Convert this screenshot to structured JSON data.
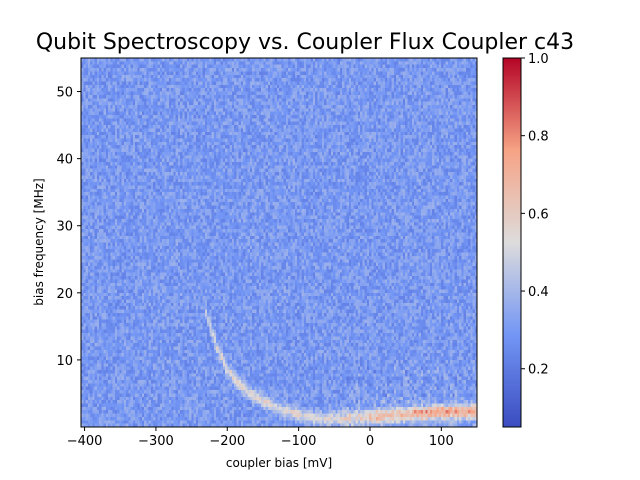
{
  "chart_data": {
    "type": "heatmap",
    "title": "Qubit Spectroscopy vs. Coupler Flux  Coupler c43",
    "xlabel": "coupler bias [mV]",
    "ylabel": "bias frequency [MHz]",
    "xlim": [
      -405,
      150
    ],
    "ylim": [
      0,
      55
    ],
    "xticks": [
      {
        "value": -400,
        "label": "−400"
      },
      {
        "value": -300,
        "label": "−300"
      },
      {
        "value": -200,
        "label": "−200"
      },
      {
        "value": -100,
        "label": "−100"
      },
      {
        "value": 0,
        "label": "0"
      },
      {
        "value": 100,
        "label": "100"
      }
    ],
    "yticks": [
      {
        "value": 10,
        "label": "10"
      },
      {
        "value": 20,
        "label": "20"
      },
      {
        "value": 30,
        "label": "30"
      },
      {
        "value": 40,
        "label": "40"
      },
      {
        "value": 50,
        "label": "50"
      }
    ],
    "colormap": "coolwarm",
    "colorbar": {
      "min": 0.05,
      "max": 1.0,
      "ticks": [
        {
          "value": 0.2,
          "label": "0.2"
        },
        {
          "value": 0.4,
          "label": "0.4"
        },
        {
          "value": 0.6,
          "label": "0.6"
        },
        {
          "value": 0.8,
          "label": "0.8"
        },
        {
          "value": 1.0,
          "label": "1.0"
        }
      ]
    },
    "background_level": 0.3,
    "feature_trace": [
      {
        "x": -230,
        "y": 17
      },
      {
        "x": -215,
        "y": 12
      },
      {
        "x": -200,
        "y": 8.5
      },
      {
        "x": -180,
        "y": 6
      },
      {
        "x": -160,
        "y": 4.5
      },
      {
        "x": -140,
        "y": 3.3
      },
      {
        "x": -120,
        "y": 2.4
      },
      {
        "x": -100,
        "y": 1.8
      },
      {
        "x": -80,
        "y": 1.3
      },
      {
        "x": -60,
        "y": 1.2
      },
      {
        "x": -30,
        "y": 1.3
      },
      {
        "x": 0,
        "y": 1.5
      },
      {
        "x": 30,
        "y": 1.7
      },
      {
        "x": 60,
        "y": 2.0
      },
      {
        "x": 90,
        "y": 2.2
      },
      {
        "x": 120,
        "y": 2.3
      },
      {
        "x": 150,
        "y": 2.4
      }
    ]
  }
}
